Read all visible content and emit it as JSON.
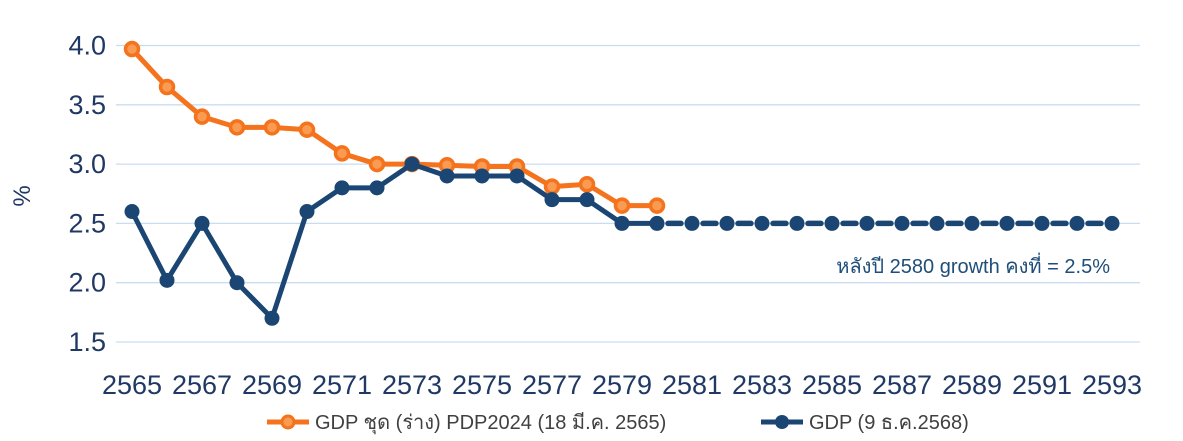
{
  "chart_data": {
    "type": "line",
    "title": "",
    "ylabel": "%",
    "ylim": [
      1.5,
      4.0
    ],
    "yticks": [
      4.0,
      3.5,
      3.0,
      2.5,
      2.0,
      1.5
    ],
    "x_range": [
      2565,
      2593
    ],
    "xtick_labels": [
      2565,
      2567,
      2569,
      2571,
      2573,
      2575,
      2577,
      2579,
      2581,
      2583,
      2585,
      2587,
      2589,
      2591,
      2593
    ],
    "grid": true,
    "legend_position": "bottom",
    "annotation": "หลังปี 2580 growth คงที่ = 2.5%",
    "series": [
      {
        "name": "GDP ชุด (ร่าง) PDP2024 (18 มี.ค. 2565)",
        "x_start": 2565,
        "values": [
          3.97,
          3.65,
          3.4,
          3.31,
          3.31,
          3.29,
          3.09,
          3.0,
          3.0,
          2.99,
          2.98,
          2.98,
          2.81,
          2.83,
          2.65,
          2.65
        ],
        "line_color": "#F4731C",
        "marker_fill": "#F99B52",
        "marker_stroke": "#F4731C",
        "style": "solid"
      },
      {
        "name": "GDP (9 ธ.ค.2568)",
        "x_start": 2565,
        "values": [
          2.6,
          2.02,
          2.5,
          2.0,
          1.7,
          2.6,
          2.8,
          2.8,
          3.0,
          2.9,
          2.9,
          2.9,
          2.7,
          2.7,
          2.5,
          2.5,
          2.5,
          2.5,
          2.5,
          2.5,
          2.5,
          2.5,
          2.5,
          2.5,
          2.5,
          2.5,
          2.5,
          2.5,
          2.5
        ],
        "line_color": "#1B4673",
        "marker_fill": "#1B4673",
        "marker_stroke": "#1B4673",
        "style": "solid_then_dashed",
        "dash_from": 2580
      }
    ],
    "colors": {
      "grid": "#C9DDF0",
      "axis_text": "#1F3864",
      "annotation_text": "#1F4E79",
      "legend_text": "#404040"
    }
  }
}
